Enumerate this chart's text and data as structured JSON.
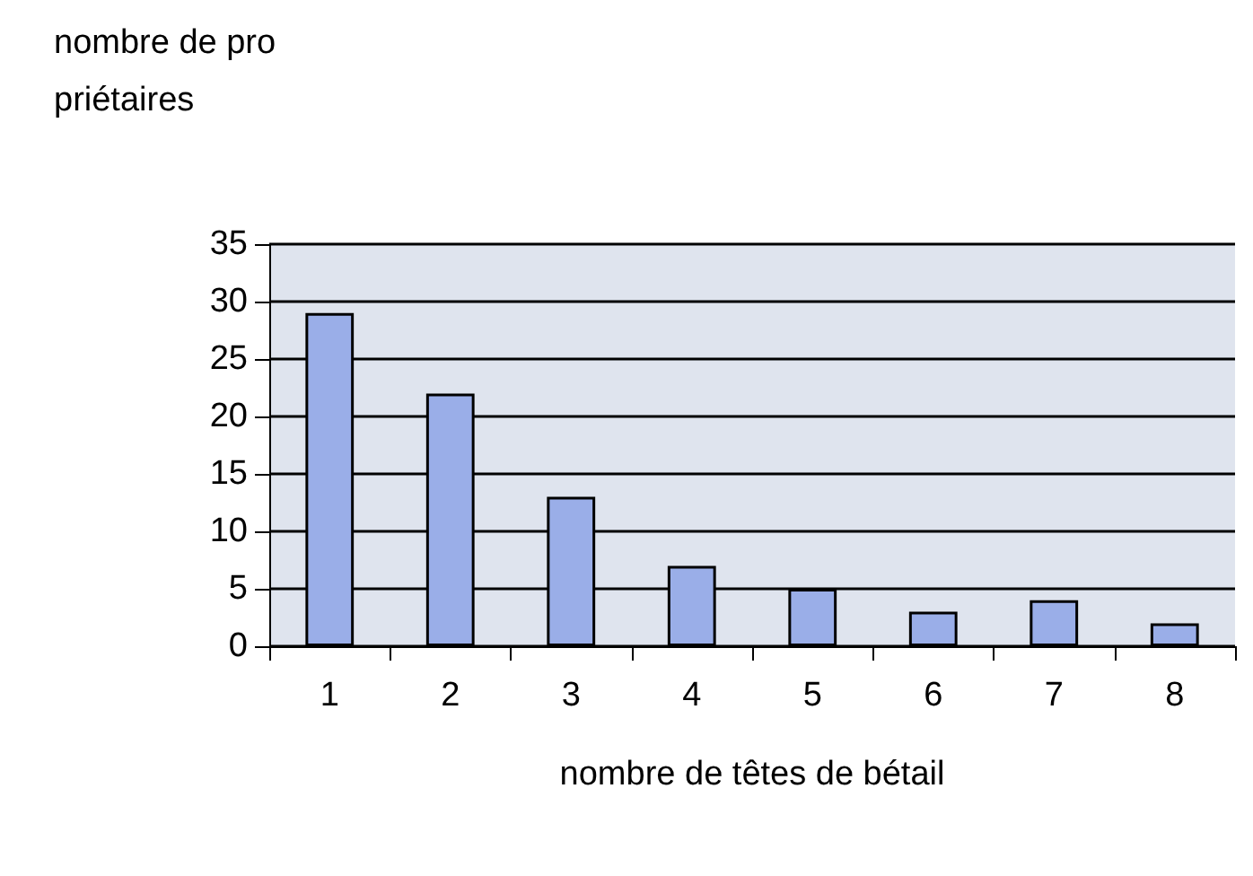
{
  "chart_data": {
    "type": "bar",
    "xlabel": "nombre de têtes de bétail",
    "ylabel": "nombre de propriétaires",
    "categories": [
      "1",
      "2",
      "3",
      "4",
      "5",
      "6",
      "7",
      "8"
    ],
    "values": [
      29,
      22,
      13,
      7,
      5,
      3,
      4,
      2
    ],
    "color": "#9aaee8",
    "ylim": [
      0,
      35
    ],
    "yticks": [
      0,
      5,
      10,
      15,
      20,
      25,
      30,
      35
    ],
    "grid": "y"
  }
}
